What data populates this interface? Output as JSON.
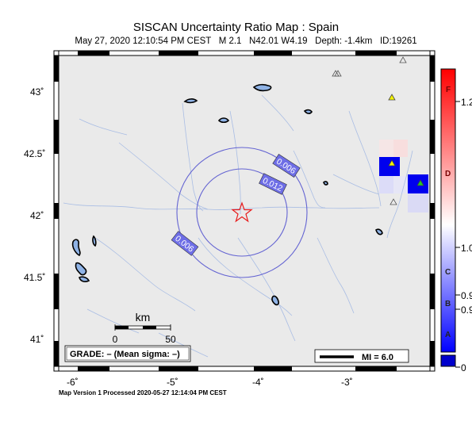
{
  "header": {
    "title": "SISCAN Uncertainty Ratio Map : Spain",
    "subtitle": "May 27, 2020 12:10:54 PM CEST   M 2.1   N42.01 W4.19   Depth: -1.4km   ID:19261"
  },
  "axes": {
    "lat_labels": [
      "43˚",
      "42.5˚",
      "42˚",
      "41.5˚",
      "41˚"
    ],
    "lon_labels": [
      "-6˚",
      "-5˚",
      "-4˚",
      "-3˚"
    ]
  },
  "contours": {
    "labels": [
      "0.006",
      "0.012",
      "0.006"
    ]
  },
  "scale_bar": {
    "unit": "km",
    "ticks": [
      "0",
      "50"
    ]
  },
  "grade_box": {
    "text": "GRADE: – (Mean sigma: –)"
  },
  "mi_legend": {
    "text": "MI = 6.0"
  },
  "colorbar": {
    "grade_letters": [
      "F",
      "D",
      "C",
      "B",
      "A"
    ],
    "values": [
      "1.2",
      "1.0",
      "0.9",
      "0.9",
      "0"
    ],
    "colors": {
      "top": "#ff0000",
      "mid": "#ffffff",
      "bottom": "#0000ff"
    }
  },
  "epicenter": {
    "marker": "star-icon",
    "color": "#e81c1c"
  },
  "footer": {
    "text": "Map Version 1 Processed 2020-05-27 12:14:04 PM CEST"
  }
}
